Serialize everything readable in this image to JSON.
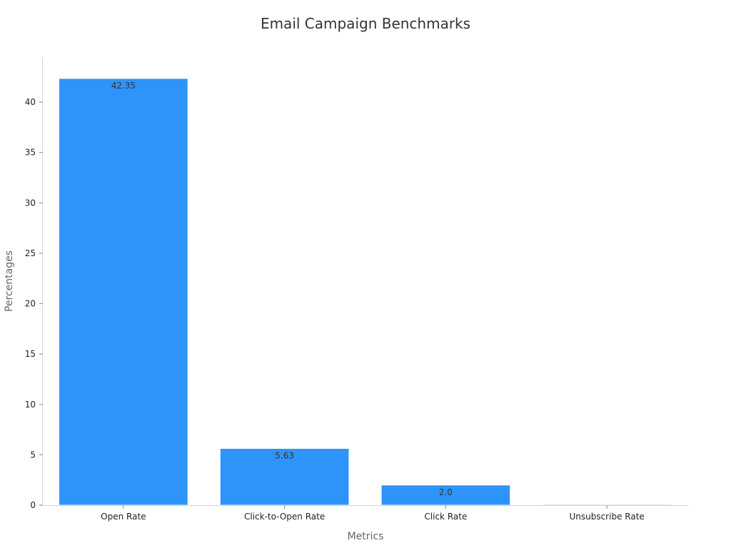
{
  "chart_data": {
    "type": "bar",
    "title": "Email Campaign Benchmarks",
    "xlabel": "Metrics",
    "ylabel": "Percentages",
    "categories": [
      "Open Rate",
      "Click-to-Open Rate",
      "Click Rate",
      "Unsubscribe Rate"
    ],
    "values": [
      42.35,
      5.63,
      2.0,
      0.1
    ],
    "data_labels": [
      "42.35",
      "5.63",
      "2.0",
      ""
    ],
    "bar_colors": [
      "#2e93fa",
      "#2e93fa",
      "#2e93fa",
      "#a6cdf0"
    ],
    "ylim": [
      0,
      44.47
    ],
    "yticks": [
      0,
      5,
      10,
      15,
      20,
      25,
      30,
      35,
      40
    ],
    "grid": false,
    "legend": "none"
  }
}
